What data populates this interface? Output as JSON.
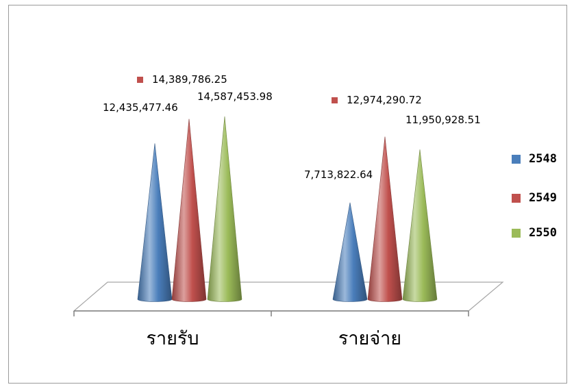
{
  "chart_data": {
    "type": "bar",
    "style": "3d-cone",
    "categories": [
      "รายรับ",
      "รายจ่าย"
    ],
    "series": [
      {
        "name": "2548",
        "color": "#4a7ebb",
        "values": [
          12435477.46,
          7713822.64
        ],
        "labels": [
          "12,435,477.46",
          "7,713,822.64"
        ]
      },
      {
        "name": "2549",
        "color": "#c0504d",
        "values": [
          14389786.25,
          12974290.72
        ],
        "labels": [
          "14,389,786.25",
          "12,974,290.72"
        ]
      },
      {
        "name": "2550",
        "color": "#9bbb59",
        "values": [
          14587453.98,
          11950928.51
        ],
        "labels": [
          "14,587,453.98",
          "11,950,928.51"
        ]
      }
    ],
    "legend": "right",
    "grid": false
  }
}
